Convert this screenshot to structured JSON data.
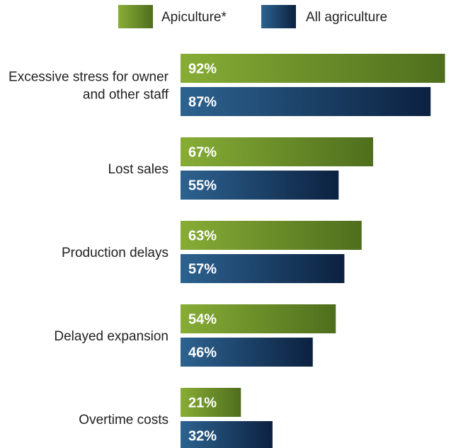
{
  "chart_data": {
    "type": "bar",
    "orientation": "horizontal",
    "categories": [
      [
        "Excessive stress for owner",
        "and other staff"
      ],
      [
        "Lost sales"
      ],
      [
        "Production delays"
      ],
      [
        "Delayed expansion"
      ],
      [
        "Overtime costs"
      ]
    ],
    "series": [
      {
        "name": "Apiculture*",
        "values": [
          92,
          67,
          63,
          54,
          21
        ],
        "labels": [
          "92%",
          "67%",
          "63%",
          "54%",
          "21%"
        ],
        "color_start": "#87ad36",
        "color_end": "#4f6e1d"
      },
      {
        "name": "All agriculture",
        "values": [
          87,
          55,
          57,
          46,
          32
        ],
        "labels": [
          "87%",
          "55%",
          "57%",
          "46%",
          "32%"
        ],
        "color_start": "#2d6390",
        "color_end": "#0c2140"
      }
    ],
    "unit": "%",
    "xlim": [
      0,
      100
    ],
    "grid": false,
    "legend_position": "top"
  }
}
